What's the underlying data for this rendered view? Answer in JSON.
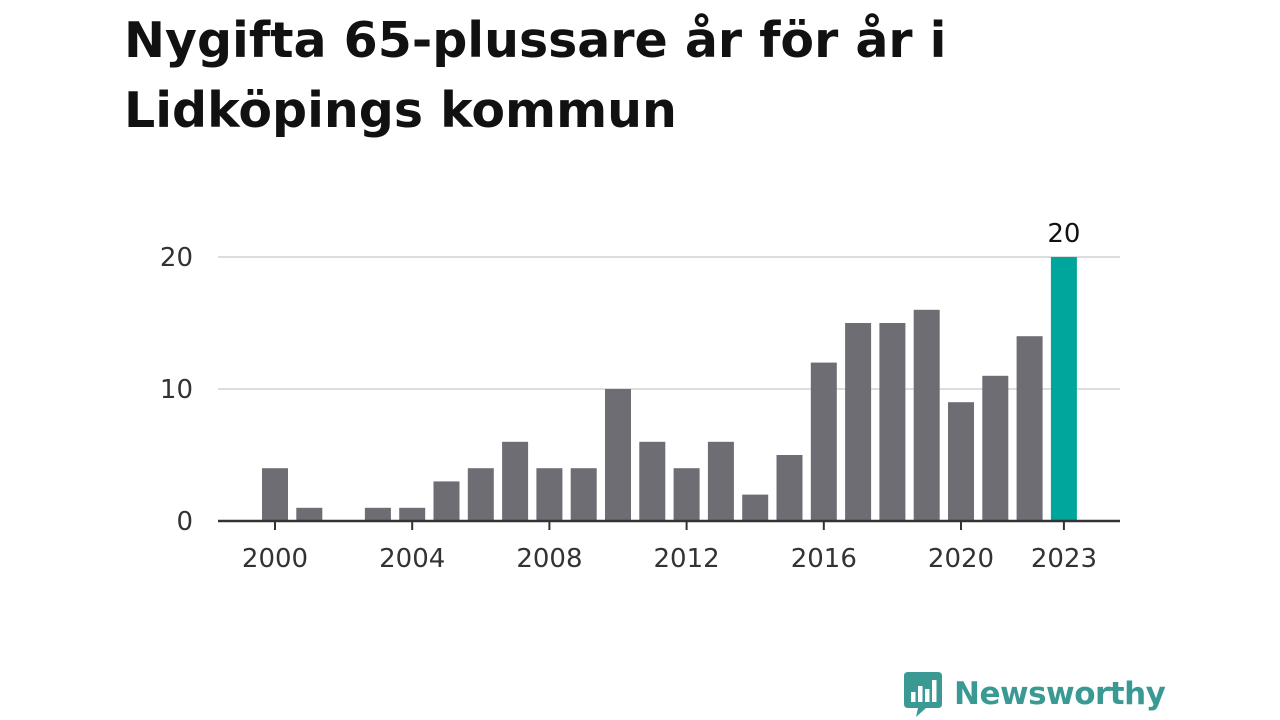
{
  "title": "Nygifta 65-plussare år för år i Lidköpings kommun",
  "brand": {
    "name": "Newsworthy",
    "logo_icon": "newsworthy-chart-bubble-icon",
    "color": "#3a9a93"
  },
  "colors": {
    "bar": "#6e6d74",
    "highlight": "#00a69c",
    "grid": "#dddddd",
    "axis": "#333333"
  },
  "chart_data": {
    "type": "bar",
    "title": "Nygifta 65-plussare år för år i Lidköpings kommun",
    "xlabel": "",
    "ylabel": "",
    "categories": [
      2000,
      2001,
      2002,
      2003,
      2004,
      2005,
      2006,
      2007,
      2008,
      2009,
      2010,
      2011,
      2012,
      2013,
      2014,
      2015,
      2016,
      2017,
      2018,
      2019,
      2020,
      2021,
      2022,
      2023
    ],
    "values": [
      4,
      1,
      0,
      1,
      1,
      3,
      4,
      6,
      4,
      4,
      10,
      6,
      4,
      6,
      2,
      5,
      12,
      15,
      15,
      16,
      9,
      11,
      14,
      20
    ],
    "ylim": [
      0,
      20
    ],
    "yticks": [
      0,
      10,
      20
    ],
    "xticks": [
      2000,
      2004,
      2008,
      2012,
      2016,
      2020,
      2023
    ],
    "highlight": {
      "category": 2023,
      "value": 20,
      "label": "20"
    },
    "grid": true,
    "legend": "none"
  }
}
